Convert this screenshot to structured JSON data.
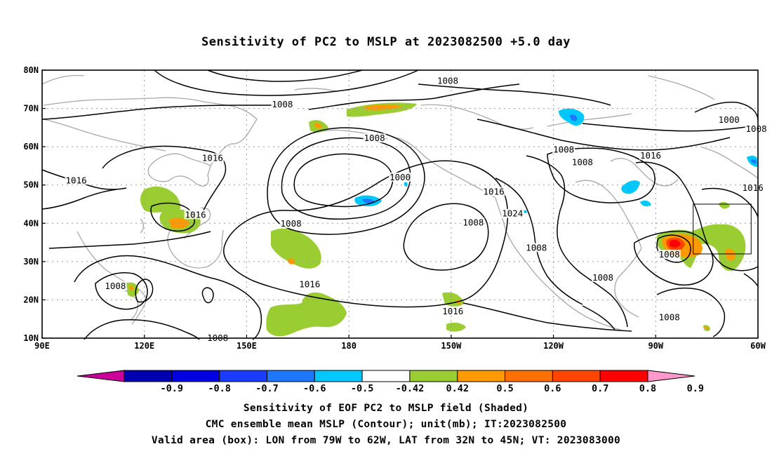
{
  "title": "Sensitivity of PC2 to MSLP at 2023082500 +5.0 day",
  "lat_labels": [
    "80N",
    "70N",
    "60N",
    "50N",
    "40N",
    "30N",
    "20N",
    "10N"
  ],
  "lon_labels": [
    "90E",
    "120E",
    "150E",
    "180",
    "150W",
    "120W",
    "90W",
    "60W"
  ],
  "contour_labels": [
    {
      "text": "1008",
      "lon": -172.5,
      "lat": 62.0
    },
    {
      "text": "1000",
      "lon": -165.0,
      "lat": 51.8
    },
    {
      "text": "1008",
      "lon": -151.0,
      "lat": 77.0
    },
    {
      "text": "1008",
      "lon": -143.5,
      "lat": 40.0
    },
    {
      "text": "1016",
      "lon": -137.5,
      "lat": 48.0
    },
    {
      "text": "1024",
      "lon": -132.0,
      "lat": 42.3
    },
    {
      "text": "1008",
      "lon": -125.0,
      "lat": 33.4
    },
    {
      "text": "1016",
      "lon": -149.5,
      "lat": 16.8
    },
    {
      "text": "1016",
      "lon": 168.5,
      "lat": 23.8
    },
    {
      "text": "1008",
      "lon": 160.5,
      "lat": 70.8
    },
    {
      "text": "1008",
      "lon": 163.0,
      "lat": 39.7
    },
    {
      "text": "1016",
      "lon": 140.0,
      "lat": 56.8
    },
    {
      "text": "1016",
      "lon": 135.0,
      "lat": 42.0
    },
    {
      "text": "1016",
      "lon": 100.0,
      "lat": 51.0
    },
    {
      "text": "1008",
      "lon": 111.5,
      "lat": 23.4
    },
    {
      "text": "1008",
      "lon": 141.5,
      "lat": 9.8
    },
    {
      "text": "1008",
      "lon": -117.0,
      "lat": 59.0
    },
    {
      "text": "1008",
      "lon": -111.5,
      "lat": 55.7
    },
    {
      "text": "1016",
      "lon": -91.5,
      "lat": 57.5
    },
    {
      "text": "1000",
      "lon": -68.5,
      "lat": 66.8
    },
    {
      "text": "1008",
      "lon": -60.5,
      "lat": 64.4
    },
    {
      "text": "1016",
      "lon": -61.5,
      "lat": 49.0
    },
    {
      "text": "1008",
      "lon": -86.0,
      "lat": 31.6
    },
    {
      "text": "1008",
      "lon": -105.5,
      "lat": 25.6
    },
    {
      "text": "1008",
      "lon": -86.0,
      "lat": 15.2
    }
  ],
  "valid_box": {
    "lon_min": -79,
    "lon_max": -62,
    "lat_min": 32,
    "lat_max": 45
  },
  "colorbar": {
    "ticks": [
      "-0.9",
      "-0.8",
      "-0.7",
      "-0.6",
      "-0.5",
      "-0.42",
      "0.42",
      "0.5",
      "0.6",
      "0.7",
      "0.8",
      "0.9"
    ],
    "colors": [
      "#cc0099",
      "#0000b0",
      "#0000e0",
      "#1a3cff",
      "#1e78ff",
      "#00c8ff",
      "#ffffff",
      "#9acd32",
      "#ff9900",
      "#ff7000",
      "#ff4500",
      "#ff0000",
      "#ff99cc"
    ]
  },
  "captions": {
    "line1": "Sensitivity of EOF PC2 to MSLP field (Shaded)",
    "line2": "CMC ensemble mean MSLP (Contour); unit(mb); IT:2023082500",
    "line3": "Valid area (box): LON from 79W to 62W, LAT from 32N to 45N; VT: 2023083000"
  }
}
